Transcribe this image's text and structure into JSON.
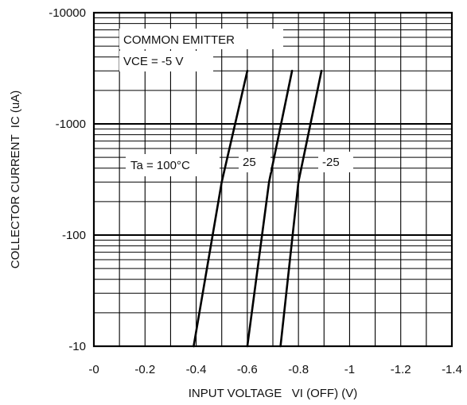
{
  "chart_data": {
    "type": "line",
    "xlabel": "INPUT VOLTAGE   VI (OFF) (V)",
    "ylabel": "COLLECTOR CURRENT  IC (uA)",
    "x_scale": "linear",
    "y_scale": "log",
    "xlim": [
      0,
      -1.4
    ],
    "ylim": [
      -10,
      -10000
    ],
    "x_ticks": [
      "-0",
      "-0.2",
      "-0.4",
      "-0.6",
      "-0.8",
      "-1",
      "-1.2",
      "-1.4"
    ],
    "x_tick_values": [
      0,
      -0.2,
      -0.4,
      -0.6,
      -0.8,
      -1.0,
      -1.2,
      -1.4
    ],
    "y_ticks": [
      "-10",
      "-100",
      "-1000",
      "-10000"
    ],
    "y_tick_values": [
      -10,
      -100,
      -1000,
      -10000
    ],
    "grid": true,
    "annotations": {
      "common_emitter": "COMMON EMITTER",
      "vce": "VCE = -5 V",
      "ta_100": "Ta = 100°C",
      "ta_25": "25",
      "ta_neg25": "-25"
    },
    "series": [
      {
        "name": "Ta = 100°C",
        "x": [
          -0.39,
          -0.5,
          -0.6
        ],
        "y": [
          -10,
          -300,
          -3000
        ]
      },
      {
        "name": "25",
        "x": [
          -0.6,
          -0.685,
          -0.775
        ],
        "y": [
          -10,
          -300,
          -3000
        ]
      },
      {
        "name": "-25",
        "x": [
          -0.73,
          -0.8,
          -0.89
        ],
        "y": [
          -10,
          -300,
          -3000
        ]
      }
    ]
  }
}
